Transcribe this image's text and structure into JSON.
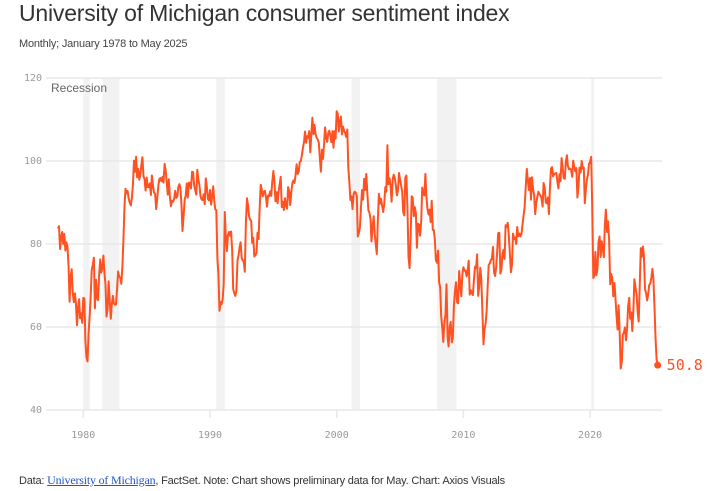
{
  "header": {
    "title": "University of Michigan consumer sentiment index",
    "subtitle": "Monthly; January 1978 to May 2025"
  },
  "footer": {
    "prefix": "Data: ",
    "link_text": "University of Michigan",
    "suffix": ", FactSet. Note: Chart shows preliminary data for May. Chart: Axios Visuals"
  },
  "colors": {
    "line": "#ff5121",
    "recession": "#f2f2f2",
    "grid": "#e8e8e8"
  },
  "chart_data": {
    "type": "line",
    "title": "University of Michigan consumer sentiment index",
    "xlabel": "",
    "ylabel": "",
    "ylim": [
      40,
      120
    ],
    "yticks": [
      40,
      60,
      80,
      100,
      120
    ],
    "xticks": [
      1980,
      1990,
      2000,
      2010,
      2020
    ],
    "xlim": [
      1977.5,
      2025.9
    ],
    "grid": true,
    "recession_label": "Recession",
    "recessions": [
      [
        1980.0,
        1980.5
      ],
      [
        1981.5,
        1982.85
      ],
      [
        1990.5,
        1991.17
      ],
      [
        2001.17,
        2001.84
      ],
      [
        2007.92,
        2009.45
      ],
      [
        2020.08,
        2020.3
      ]
    ],
    "start": {
      "year": 1978,
      "month": 1
    },
    "frequency": "monthly",
    "end_label": "50.8",
    "series": [
      {
        "name": "Consumer sentiment",
        "values": [
          83.7,
          84.3,
          78.8,
          81.6,
          82.9,
          80.0,
          82.4,
          78.4,
          80.4,
          79.3,
          75.0,
          66.1,
          72.1,
          73.9,
          68.4,
          66.0,
          68.1,
          65.8,
          60.4,
          64.5,
          66.7,
          62.1,
          63.3,
          61.0,
          67.0,
          66.9,
          56.5,
          52.7,
          51.7,
          58.7,
          62.3,
          67.4,
          73.7,
          75.0,
          76.7,
          64.5,
          71.4,
          66.9,
          66.5,
          72.4,
          76.3,
          73.1,
          74.1,
          77.2,
          73.1,
          70.3,
          62.5,
          64.3,
          71.0,
          66.5,
          62.0,
          65.5,
          67.5,
          65.7,
          65.4,
          65.4,
          69.3,
          73.4,
          72.1,
          71.9,
          70.4,
          74.6,
          80.8,
          89.1,
          93.3,
          92.2,
          92.8,
          90.9,
          89.9,
          89.3,
          91.1,
          94.2,
          100.1,
          97.4,
          101.0,
          96.1,
          98.1,
          95.5,
          96.6,
          99.1,
          100.9,
          96.3,
          95.7,
          92.9,
          96.0,
          93.7,
          93.7,
          94.6,
          91.8,
          96.5,
          94.0,
          92.4,
          92.1,
          88.4,
          90.9,
          93.9,
          95.6,
          95.9,
          95.1,
          96.2,
          94.8,
          99.3,
          97.7,
          94.9,
          91.9,
          95.6,
          91.4,
          89.1,
          90.4,
          90.2,
          90.8,
          92.8,
          91.1,
          91.5,
          93.7,
          94.4,
          93.6,
          89.3,
          83.1,
          86.8,
          90.8,
          91.6,
          94.6,
          91.2,
          94.8,
          94.7,
          93.4,
          97.4,
          97.3,
          94.1,
          93.0,
          91.9,
          97.9,
          95.4,
          94.3,
          91.5,
          90.7,
          90.6,
          92.0,
          89.6,
          95.8,
          93.9,
          90.9,
          90.5,
          93.0,
          89.5,
          91.3,
          93.9,
          90.6,
          88.3,
          88.2,
          76.4,
          72.8,
          63.9,
          66.0,
          65.5,
          66.8,
          70.4,
          87.7,
          81.8,
          78.3,
          82.1,
          82.9,
          82.0,
          83.0,
          78.3,
          69.1,
          68.2,
          67.5,
          68.8,
          76.0,
          77.2,
          79.2,
          80.4,
          76.6,
          76.1,
          75.6,
          73.3,
          85.3,
          91.0,
          89.3,
          86.6,
          85.9,
          85.6,
          80.3,
          81.5,
          77.0,
          77.3,
          77.9,
          82.7,
          81.2,
          88.2,
          94.3,
          93.2,
          91.5,
          92.6,
          92.8,
          91.2,
          89.0,
          91.7,
          91.5,
          92.7,
          91.6,
          95.1,
          97.6,
          95.1,
          90.3,
          92.5,
          89.8,
          92.7,
          94.4,
          96.2,
          88.9,
          90.2,
          88.2,
          91.0,
          89.3,
          88.5,
          93.7,
          92.7,
          89.4,
          92.4,
          94.7,
          95.3,
          94.7,
          96.5,
          99.2,
          96.9,
          97.4,
          99.7,
          100.0,
          101.4,
          103.2,
          104.5,
          107.1,
          104.4,
          106.0,
          105.6,
          107.2,
          102.1,
          106.6,
          110.4,
          106.5,
          108.7,
          106.5,
          105.6,
          105.2,
          104.4,
          100.9,
          97.4,
          102.7,
          100.5,
          103.9,
          108.1,
          105.7,
          104.6,
          106.8,
          107.3,
          106.0,
          104.5,
          107.2,
          103.2,
          107.2,
          105.4,
          112.0,
          111.3,
          107.1,
          109.2,
          110.7,
          106.4,
          108.3,
          107.3,
          106.8,
          105.8,
          107.6,
          98.4,
          94.7,
          90.6,
          91.5,
          88.4,
          92.0,
          92.6,
          92.4,
          91.5,
          81.8,
          82.7,
          83.9,
          88.8,
          93.0,
          90.7,
          95.7,
          93.0,
          96.9,
          92.4,
          88.1,
          87.6,
          86.1,
          80.6,
          84.2,
          86.7,
          82.4,
          79.9,
          77.6,
          86.0,
          92.1,
          89.7,
          90.9,
          89.3,
          87.7,
          89.6,
          93.7,
          92.6,
          103.8,
          94.4,
          95.8,
          94.2,
          90.2,
          95.6,
          96.7,
          95.9,
          94.2,
          91.7,
          92.8,
          97.1,
          95.5,
          94.1,
          92.6,
          87.7,
          86.9,
          96.0,
          96.5,
          89.1,
          76.9,
          74.2,
          81.6,
          91.5,
          91.2,
          86.7,
          88.9,
          87.4,
          79.1,
          84.9,
          84.7,
          82.0,
          85.4,
          93.6,
          92.1,
          91.7,
          96.9,
          91.3,
          88.4,
          87.1,
          88.3,
          85.3,
          90.4,
          83.4,
          83.4,
          80.9,
          76.1,
          75.5,
          78.4,
          70.8,
          69.5,
          62.6,
          59.8,
          56.4,
          61.2,
          63.0,
          70.3,
          57.6,
          55.3,
          60.1,
          61.2,
          56.3,
          57.3,
          65.1,
          68.7,
          70.8,
          66.0,
          65.7,
          73.5,
          70.6,
          67.4,
          72.5,
          74.4,
          73.6,
          73.6,
          72.2,
          73.6,
          76.0,
          67.8,
          68.9,
          68.2,
          67.7,
          71.6,
          74.5,
          74.2,
          77.5,
          67.5,
          69.8,
          74.3,
          71.5,
          63.7,
          55.8,
          59.5,
          60.8,
          63.7,
          69.9,
          75.0,
          75.3,
          76.2,
          76.4,
          79.3,
          73.2,
          72.3,
          74.3,
          78.3,
          82.6,
          82.7,
          72.9,
          73.8,
          77.6,
          78.6,
          76.4,
          84.5,
          84.1,
          85.1,
          82.1,
          77.5,
          73.2,
          75.1,
          82.5,
          81.2,
          81.6,
          80.0,
          84.1,
          81.9,
          82.5,
          81.8,
          82.5,
          84.6,
          86.9,
          88.8,
          93.6,
          98.1,
          95.4,
          93.0,
          95.9,
          90.7,
          96.1,
          93.1,
          91.9,
          87.2,
          90.0,
          91.3,
          92.6,
          92.0,
          91.7,
          91.0,
          89.0,
          94.7,
          93.5,
          90.0,
          89.8,
          91.2,
          87.2,
          93.8,
          98.2,
          98.5,
          96.3,
          96.9,
          97.0,
          97.1,
          95.0,
          93.4,
          96.8,
          95.1,
          100.7,
          98.5,
          95.9,
          95.7,
          99.7,
          101.4,
          98.8,
          98.0,
          98.2,
          97.9,
          96.2,
          100.1,
          98.6,
          97.5,
          98.3,
          91.2,
          93.8,
          98.4,
          97.2,
          100.0,
          98.2,
          98.4,
          89.8,
          93.2,
          95.5,
          96.8,
          99.3,
          99.8,
          101.0,
          89.1,
          71.8,
          72.3,
          78.1,
          72.5,
          74.1,
          80.4,
          81.8,
          76.9,
          80.7,
          79.0,
          76.8,
          84.9,
          88.3,
          82.9,
          85.5,
          81.2,
          70.3,
          72.8,
          71.7,
          67.4,
          70.6,
          67.2,
          62.8,
          59.4,
          65.2,
          58.4,
          50.0,
          51.5,
          58.2,
          58.6,
          59.9,
          56.8,
          59.7,
          64.9,
          67.0,
          62.0,
          63.5,
          59.0,
          64.2,
          71.5,
          69.5,
          67.9,
          63.8,
          61.3,
          69.7,
          79.0,
          76.9,
          79.4,
          77.2,
          69.1,
          68.2,
          66.4,
          67.9,
          70.1,
          70.5,
          71.8,
          74.0,
          71.7,
          64.7,
          57.0,
          52.2,
          50.8
        ]
      }
    ]
  }
}
